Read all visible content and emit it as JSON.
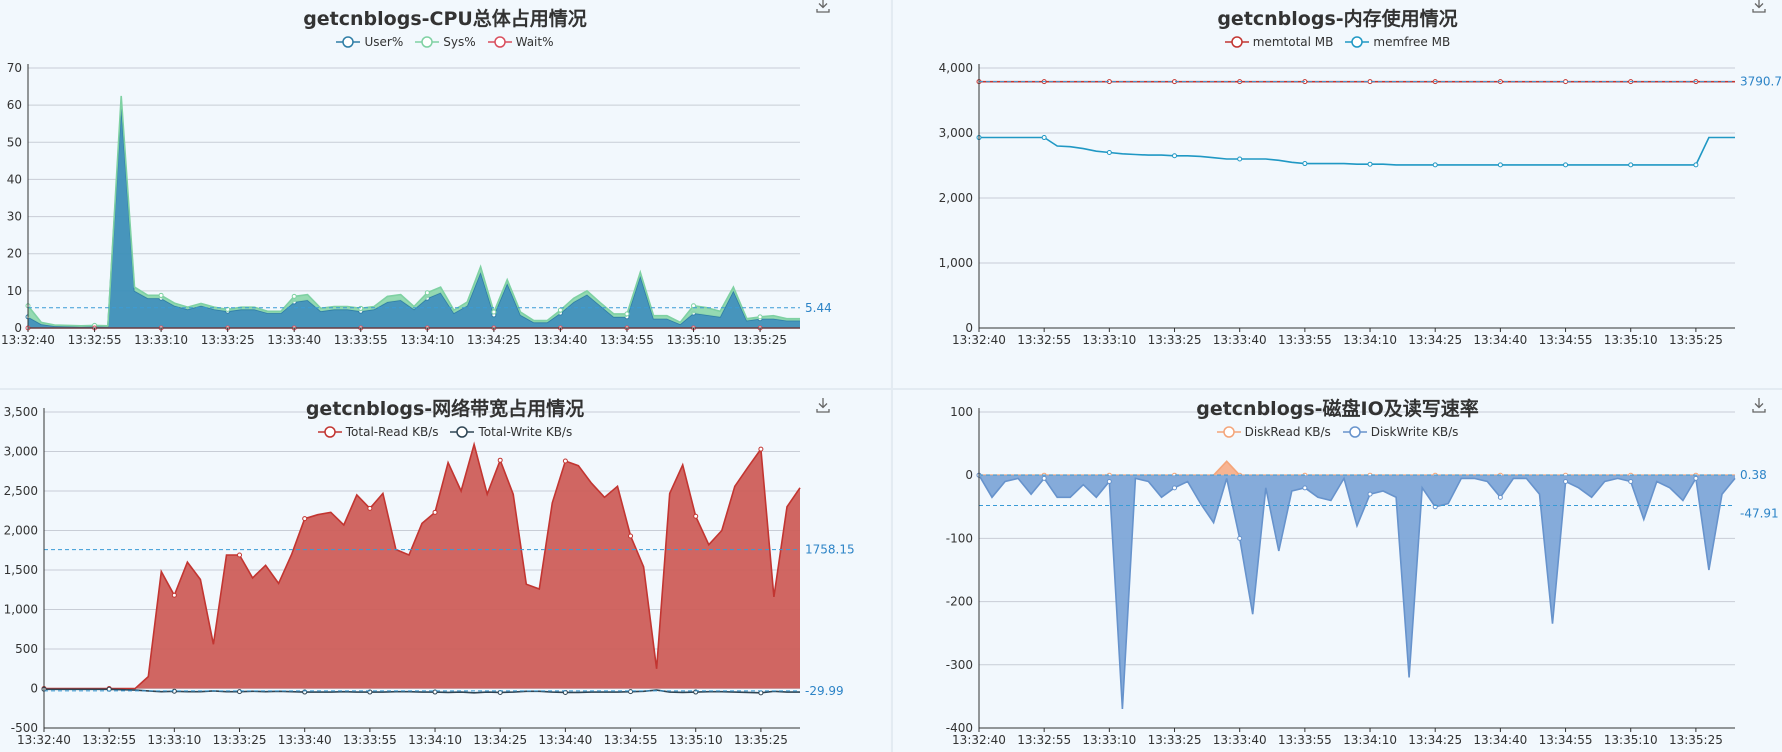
{
  "charts": [
    {
      "id": "cpu",
      "chart_data": {
        "type": "area",
        "title": "getcnblogs-CPU总体占用情况",
        "x_ticks": [
          "13:32:40",
          "13:32:55",
          "13:33:10",
          "13:33:25",
          "13:33:40",
          "13:33:55",
          "13:34:10",
          "13:34:25",
          "13:34:40",
          "13:34:55",
          "13:35:10",
          "13:35:25"
        ],
        "ylim": [
          0,
          70
        ],
        "yticks": [
          0,
          10,
          20,
          30,
          40,
          50,
          60,
          70
        ],
        "n": 59,
        "series": [
          {
            "name": "User%",
            "color": "#2f7ea6",
            "fill": "#3d8fb8",
            "stacked": true,
            "values": [
              3,
              1,
              0.5,
              0.4,
              0.3,
              0.4,
              0.3,
              60,
              10,
              8,
              8,
              6,
              5,
              6,
              5,
              4.5,
              5,
              5,
              4,
              4,
              7,
              7.5,
              4.5,
              5,
              5,
              4.5,
              5,
              7,
              7.5,
              5,
              8,
              9.5,
              4,
              6,
              15,
              3.5,
              12,
              3.5,
              1.5,
              1.5,
              4,
              7,
              9,
              6,
              3,
              3,
              14,
              2.5,
              2.5,
              1,
              4,
              3.5,
              3,
              10,
              2,
              2.5,
              2.5,
              2,
              2
            ]
          },
          {
            "name": "Sys%",
            "color": "#7fd1a3",
            "fill": "#8fd8ae",
            "stacked": true,
            "values": [
              3,
              0.5,
              0.3,
              0.3,
              0.3,
              0.3,
              0.3,
              2.5,
              1,
              0.8,
              0.8,
              0.7,
              0.6,
              0.6,
              0.6,
              0.5,
              0.6,
              0.6,
              0.5,
              0.5,
              1.5,
              1.5,
              0.8,
              0.8,
              0.8,
              0.8,
              0.8,
              1.5,
              1.5,
              0.8,
              1.5,
              1.5,
              0.8,
              1,
              1.5,
              0.8,
              1,
              0.8,
              0.5,
              0.5,
              0.8,
              1,
              1,
              0.8,
              0.8,
              0.8,
              1,
              0.8,
              0.8,
              0.5,
              2,
              2,
              1.5,
              1,
              0.5,
              0.5,
              0.8,
              0.5,
              0.5
            ]
          },
          {
            "name": "Wait%",
            "color": "#d94e5d",
            "fill": "none",
            "stacked": false,
            "values": [
              0,
              0,
              0,
              0,
              0,
              0,
              0,
              0,
              0,
              0,
              0,
              0,
              0,
              0,
              0,
              0,
              0,
              0,
              0,
              0,
              0,
              0,
              0,
              0,
              0,
              0,
              0,
              0,
              0,
              0,
              0,
              0,
              0,
              0,
              0,
              0,
              0,
              0,
              0,
              0,
              0,
              0,
              0,
              0,
              0,
              0,
              0,
              0,
              0,
              0,
              0,
              0,
              0,
              0,
              0,
              0,
              0,
              0,
              0
            ]
          }
        ],
        "avg_line": {
          "value": 5.44,
          "label": "5.44"
        }
      }
    },
    {
      "id": "mem",
      "chart_data": {
        "type": "line",
        "title": "getcnblogs-内存使用情况",
        "x_ticks": [
          "13:32:40",
          "13:32:55",
          "13:33:10",
          "13:33:25",
          "13:33:40",
          "13:33:55",
          "13:34:10",
          "13:34:25",
          "13:34:40",
          "13:34:55",
          "13:35:10",
          "13:35:25"
        ],
        "ylim": [
          0,
          4000
        ],
        "yticks": [
          0,
          1000,
          2000,
          3000,
          4000
        ],
        "ytick_labels": [
          "0",
          "1,000",
          "2,000",
          "3,000",
          "4,000"
        ],
        "n": 59,
        "series": [
          {
            "name": "memtotal MB",
            "color": "#c23531",
            "fill": "none",
            "values": [
              3790,
              3790,
              3790,
              3790,
              3790,
              3790,
              3790,
              3790,
              3790,
              3790,
              3790,
              3790,
              3790,
              3790,
              3790,
              3790,
              3790,
              3790,
              3790,
              3790,
              3790,
              3790,
              3790,
              3790,
              3790,
              3790,
              3790,
              3790,
              3790,
              3790,
              3790,
              3790,
              3790,
              3790,
              3790,
              3790,
              3790,
              3790,
              3790,
              3790,
              3790,
              3790,
              3790,
              3790,
              3790,
              3790,
              3790,
              3790,
              3790,
              3790,
              3790,
              3790,
              3790,
              3790,
              3790,
              3790,
              3790,
              3790,
              3790
            ]
          },
          {
            "name": "memfree MB",
            "color": "#2098c4",
            "fill": "none",
            "values": [
              2930,
              2930,
              2930,
              2930,
              2930,
              2930,
              2800,
              2790,
              2760,
              2720,
              2700,
              2680,
              2670,
              2660,
              2660,
              2650,
              2650,
              2640,
              2620,
              2600,
              2600,
              2600,
              2600,
              2580,
              2550,
              2530,
              2530,
              2530,
              2530,
              2520,
              2520,
              2520,
              2510,
              2510,
              2510,
              2510,
              2510,
              2510,
              2510,
              2510,
              2510,
              2510,
              2510,
              2510,
              2510,
              2510,
              2510,
              2510,
              2510,
              2510,
              2510,
              2510,
              2510,
              2510,
              2510,
              2510,
              2930,
              2930,
              2930
            ]
          }
        ],
        "avg_line": {
          "value": 3790.7,
          "label": "3790.7"
        }
      }
    },
    {
      "id": "net",
      "chart_data": {
        "type": "area",
        "title": "getcnblogs-网络带宽占用情况",
        "x_ticks": [
          "13:32:40",
          "13:32:55",
          "13:33:10",
          "13:33:25",
          "13:33:40",
          "13:33:55",
          "13:34:10",
          "13:34:25",
          "13:34:40",
          "13:34:55",
          "13:35:10",
          "13:35:25"
        ],
        "ylim": [
          -500,
          3500
        ],
        "yticks": [
          -500,
          0,
          500,
          1000,
          1500,
          2000,
          2500,
          3000,
          3500
        ],
        "ytick_labels": [
          "-500",
          "0",
          "500",
          "1,000",
          "1,500",
          "2,000",
          "2,500",
          "3,000",
          "3,500"
        ],
        "n": 59,
        "series": [
          {
            "name": "Total-Read KB/s",
            "color": "#c23531",
            "fill": "#cd5e5a",
            "stacked": false,
            "values": [
              0,
              0,
              0,
              0,
              0,
              0,
              0,
              0,
              150,
              1480,
              1180,
              1600,
              1380,
              560,
              1690,
              1690,
              1400,
              1560,
              1330,
              1700,
              2150,
              2200,
              2230,
              2070,
              2450,
              2280,
              2470,
              1760,
              1690,
              2090,
              2230,
              2860,
              2500,
              3090,
              2460,
              2890,
              2460,
              1320,
              1260,
              2350,
              2880,
              2820,
              2600,
              2420,
              2560,
              1930,
              1540,
              250,
              2470,
              2830,
              2180,
              1820,
              2000,
              2560,
              2800,
              3030,
              1160,
              2300,
              2540
            ]
          },
          {
            "name": "Total-Write KB/s",
            "color": "#2f4554",
            "fill": "none",
            "stacked": false,
            "values": [
              -10,
              -10,
              -10,
              -10,
              -10,
              -10,
              -15,
              -20,
              -30,
              -40,
              -35,
              -40,
              -40,
              -30,
              -40,
              -40,
              -35,
              -40,
              -35,
              -40,
              -45,
              -45,
              -45,
              -40,
              -45,
              -45,
              -45,
              -40,
              -40,
              -45,
              -45,
              -50,
              -45,
              -55,
              -45,
              -50,
              -45,
              -35,
              -35,
              -45,
              -50,
              -50,
              -45,
              -45,
              -45,
              -40,
              -35,
              -20,
              -45,
              -50,
              -45,
              -40,
              -40,
              -45,
              -50,
              -55,
              -35,
              -45,
              -45
            ]
          }
        ],
        "avg_lines": [
          {
            "value": 1758.15,
            "label": "1758.15"
          },
          {
            "value": -29.99,
            "label": "-29.99"
          }
        ]
      }
    },
    {
      "id": "disk",
      "chart_data": {
        "type": "area",
        "title": "getcnblogs-磁盘IO及读写速率",
        "x_ticks": [
          "13:32:40",
          "13:32:55",
          "13:33:10",
          "13:33:25",
          "13:33:40",
          "13:33:55",
          "13:34:10",
          "13:34:25",
          "13:34:40",
          "13:34:55",
          "13:35:10",
          "13:35:25"
        ],
        "ylim": [
          -400,
          100
        ],
        "yticks": [
          -400,
          -300,
          -200,
          -100,
          0,
          100
        ],
        "n": 59,
        "series": [
          {
            "name": "DiskRead KB/s",
            "color": "#f4a57a",
            "fill": "#f7b08c",
            "stacked": false,
            "values": [
              0,
              0,
              0,
              0,
              0,
              0,
              0,
              0,
              0,
              0,
              0,
              0,
              0,
              0,
              0,
              0,
              0,
              0,
              0,
              22,
              0,
              0,
              0,
              0,
              0,
              0,
              0,
              0,
              0,
              0,
              0,
              0,
              0,
              0,
              0,
              0,
              0,
              0,
              0,
              0,
              0,
              0,
              0,
              0,
              0,
              0,
              0,
              0,
              0,
              0,
              0,
              0,
              0,
              0,
              0,
              0,
              0,
              0,
              0
            ]
          },
          {
            "name": "DiskWrite KB/s",
            "color": "#6793cc",
            "fill": "#7ea7d8",
            "stacked": false,
            "values": [
              0,
              -35,
              -10,
              -5,
              -30,
              -5,
              -35,
              -35,
              -15,
              -35,
              -10,
              -370,
              -5,
              -10,
              -35,
              -20,
              -10,
              -45,
              -75,
              -5,
              -100,
              -220,
              -20,
              -120,
              -25,
              -20,
              -35,
              -40,
              -5,
              -80,
              -30,
              -25,
              -35,
              -320,
              -20,
              -50,
              -45,
              -5,
              -5,
              -10,
              -35,
              -5,
              -5,
              -30,
              -235,
              -10,
              -20,
              -35,
              -10,
              -5,
              -10,
              -70,
              -10,
              -20,
              -40,
              -5,
              -150,
              -30,
              -5
            ]
          }
        ],
        "avg_lines": [
          {
            "value": 0.38,
            "label": "0.38"
          },
          {
            "value": -47.91,
            "label": "-47.91"
          }
        ]
      }
    }
  ]
}
